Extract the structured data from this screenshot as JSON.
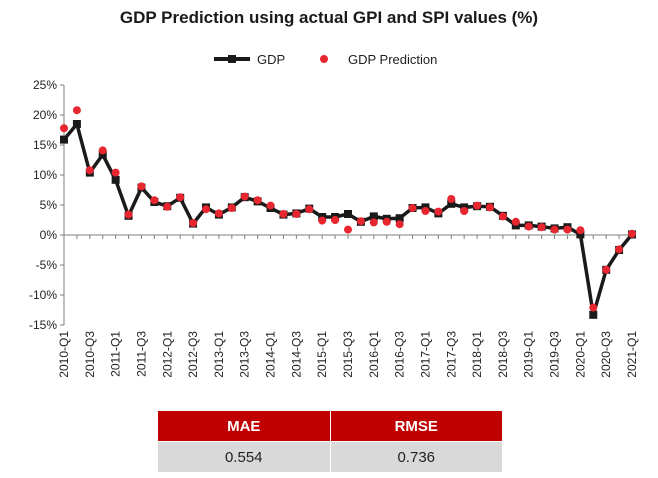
{
  "chart_data": {
    "type": "line",
    "title": "GDP Prediction using actual GPI and SPI values (%)",
    "xlabel": "",
    "ylabel": "",
    "ylim": [
      -15,
      25
    ],
    "yticks": [
      -15,
      -10,
      -5,
      0,
      5,
      10,
      15,
      20,
      25
    ],
    "ytick_labels": [
      "-15%",
      "-10%",
      "-5%",
      "0%",
      "5%",
      "10%",
      "15%",
      "20%",
      "25%"
    ],
    "grid": false,
    "legend_position": "top-center",
    "x": [
      "2010-Q1",
      "2010-Q2",
      "2010-Q3",
      "2010-Q4",
      "2011-Q1",
      "2011-Q2",
      "2011-Q3",
      "2011-Q4",
      "2012-Q1",
      "2012-Q2",
      "2012-Q3",
      "2012-Q4",
      "2013-Q1",
      "2013-Q2",
      "2013-Q3",
      "2013-Q4",
      "2014-Q1",
      "2014-Q2",
      "2014-Q3",
      "2014-Q4",
      "2015-Q1",
      "2015-Q2",
      "2015-Q3",
      "2015-Q4",
      "2016-Q1",
      "2016-Q2",
      "2016-Q3",
      "2016-Q4",
      "2017-Q1",
      "2017-Q2",
      "2017-Q3",
      "2017-Q4",
      "2018-Q1",
      "2018-Q2",
      "2018-Q3",
      "2018-Q4",
      "2019-Q1",
      "2019-Q2",
      "2019-Q3",
      "2019-Q4",
      "2020-Q1",
      "2020-Q2",
      "2020-Q3",
      "2020-Q4",
      "2021-Q1"
    ],
    "xtick_labels": [
      "2010-Q1",
      "2010-Q3",
      "2011-Q1",
      "2011-Q3",
      "2012-Q1",
      "2012-Q3",
      "2013-Q1",
      "2013-Q3",
      "2014-Q1",
      "2014-Q3",
      "2015-Q1",
      "2015-Q3",
      "2016-Q1",
      "2016-Q3",
      "2017-Q1",
      "2017-Q3",
      "2018-Q1",
      "2018-Q3",
      "2019-Q1",
      "2019-Q3",
      "2020-Q1",
      "2020-Q3",
      "2021-Q1"
    ],
    "series": [
      {
        "name": "GDP",
        "style": "line-square",
        "color": "#1a1a1a",
        "values": [
          15.9,
          18.5,
          10.4,
          13.4,
          9.2,
          3.2,
          7.9,
          5.5,
          4.8,
          6.2,
          1.9,
          4.6,
          3.4,
          4.6,
          6.3,
          5.6,
          4.5,
          3.4,
          3.6,
          4.4,
          3.0,
          3.0,
          3.5,
          2.2,
          3.1,
          2.7,
          2.8,
          4.5,
          4.6,
          3.6,
          5.2,
          4.6,
          4.8,
          4.7,
          3.2,
          1.6,
          1.6,
          1.4,
          1.1,
          1.3,
          0.1,
          -13.3,
          -5.8,
          -2.5,
          0.1
        ]
      },
      {
        "name": "GDP Prediction",
        "style": "marker",
        "color": "#e8262f",
        "values": [
          17.8,
          20.8,
          10.8,
          14.1,
          10.4,
          3.4,
          8.1,
          5.8,
          4.7,
          6.3,
          2.0,
          4.3,
          3.6,
          4.5,
          6.4,
          5.8,
          4.9,
          3.5,
          3.5,
          4.3,
          2.4,
          2.5,
          0.9,
          2.3,
          2.1,
          2.2,
          1.8,
          4.5,
          4.0,
          3.9,
          6.0,
          4.0,
          4.9,
          4.6,
          3.1,
          2.2,
          1.4,
          1.3,
          0.9,
          0.9,
          0.8,
          -12.1,
          -5.8,
          -2.4,
          0.2
        ]
      }
    ]
  },
  "metrics": {
    "headers": [
      "MAE",
      "RMSE"
    ],
    "values": [
      "0.554",
      "0.736"
    ],
    "header_color": "#c00000",
    "cell_color": "#d9d9d9"
  }
}
